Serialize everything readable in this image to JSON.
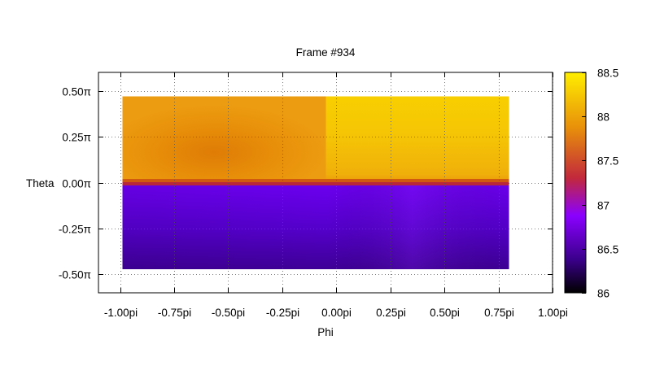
{
  "chart_data": {
    "type": "heatmap",
    "title": "Frame #934",
    "xlabel": "Phi",
    "ylabel": "Theta",
    "xlim": [
      -1.1,
      1.0
    ],
    "ylim": [
      -0.6,
      0.6
    ],
    "x_ticks": [
      {
        "value": -1.0,
        "label": "-1.00pi"
      },
      {
        "value": -0.75,
        "label": "-0.75pi"
      },
      {
        "value": -0.5,
        "label": "-0.50pi"
      },
      {
        "value": -0.25,
        "label": "-0.25pi"
      },
      {
        "value": 0.0,
        "label": "0.00pi"
      },
      {
        "value": 0.25,
        "label": "0.25pi"
      },
      {
        "value": 0.5,
        "label": "0.50pi"
      },
      {
        "value": 0.75,
        "label": "0.75pi"
      },
      {
        "value": 1.0,
        "label": "1.00pi"
      }
    ],
    "y_ticks": [
      {
        "value": 0.5,
        "label": "0.50π"
      },
      {
        "value": 0.25,
        "label": "0.25π"
      },
      {
        "value": 0.0,
        "label": "0.00π"
      },
      {
        "value": -0.25,
        "label": "-0.25π"
      },
      {
        "value": -0.5,
        "label": "-0.50π"
      }
    ],
    "grid": true,
    "data_extent": {
      "x": [
        -1.0,
        0.9
      ],
      "y": [
        -0.5,
        0.5
      ]
    },
    "regions": [
      {
        "x": [
          -1.0,
          0.0
        ],
        "y": [
          0.0,
          0.5
        ],
        "value_range": [
          87.85,
          88.05
        ],
        "description": "orange"
      },
      {
        "x": [
          0.0,
          0.9
        ],
        "y": [
          0.0,
          0.5
        ],
        "value_range": [
          88.1,
          88.3
        ],
        "description": "yellow"
      },
      {
        "x": [
          -1.0,
          0.9
        ],
        "y": [
          -0.5,
          0.0
        ],
        "value_range": [
          86.3,
          86.7
        ],
        "description": "purple"
      }
    ],
    "colorbar": {
      "min": 86,
      "max": 88.5,
      "ticks": [
        86,
        86.5,
        87,
        87.5,
        88,
        88.5
      ],
      "tick_labels": [
        "86",
        "86.5",
        "87",
        "87.5",
        "88",
        "88.5"
      ],
      "colors": [
        "#000000",
        "#3a008a",
        "#8a00ff",
        "#c2283c",
        "#e8900a",
        "#ffee00"
      ]
    }
  }
}
